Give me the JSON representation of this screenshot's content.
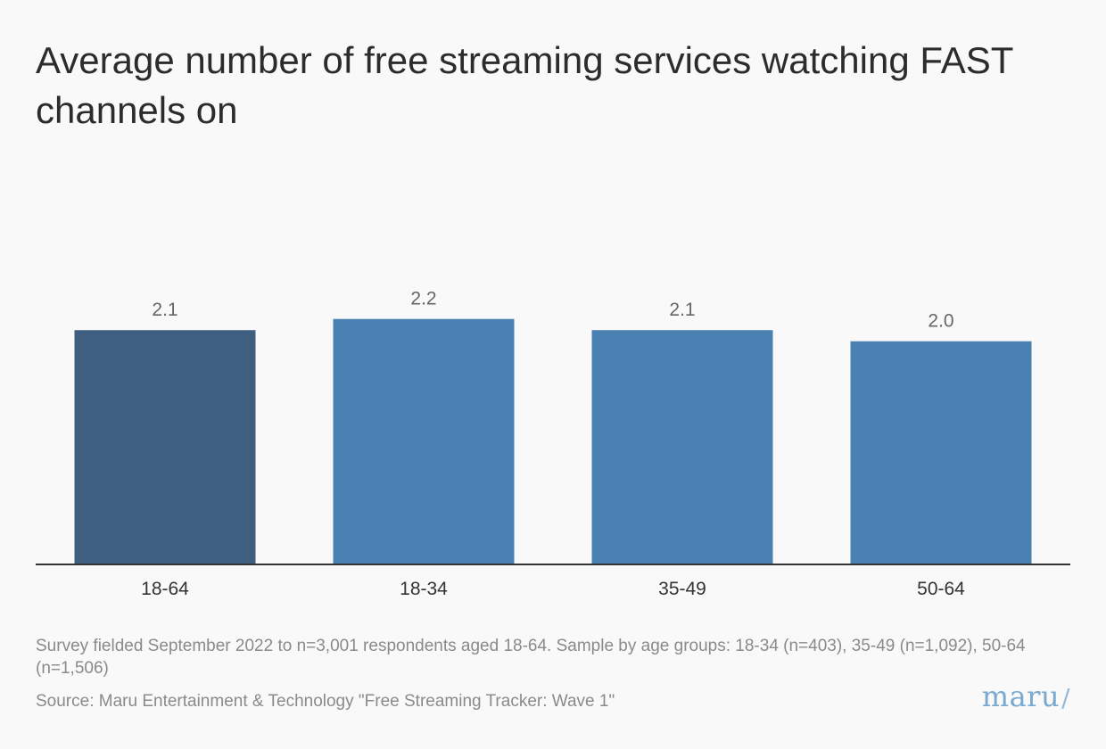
{
  "colors": {
    "background": "#f9f9f9",
    "highlight_bar": "#3e5f80",
    "bar": "#4a81b3",
    "axis": "#333333",
    "value_label": "#666666",
    "category_label": "#333333",
    "logo": "#7aa9d0"
  },
  "chart_data": {
    "type": "bar",
    "title": "Average number of free streaming services watching FAST channels on",
    "xlabel": "",
    "ylabel": "",
    "categories": [
      "18-64",
      "18-34",
      "35-49",
      "50-64"
    ],
    "values": [
      2.1,
      2.2,
      2.1,
      2.0
    ],
    "value_labels": [
      "2.1",
      "2.2",
      "2.1",
      "2.0"
    ],
    "highlighted_category": "18-64",
    "ylim": [
      0,
      3.9
    ],
    "grid": false,
    "legend": "none"
  },
  "footer": {
    "note": "Survey fielded September 2022 to n=3,001 respondents aged 18-64. Sample by age groups: 18-34 (n=403), 35-49 (n=1,092), 50-64 (n=1,506)",
    "source": "Source: Maru Entertainment & Technology \"Free Streaming Tracker: Wave 1\"",
    "logo_text": "maru",
    "logo_slash": "/"
  }
}
